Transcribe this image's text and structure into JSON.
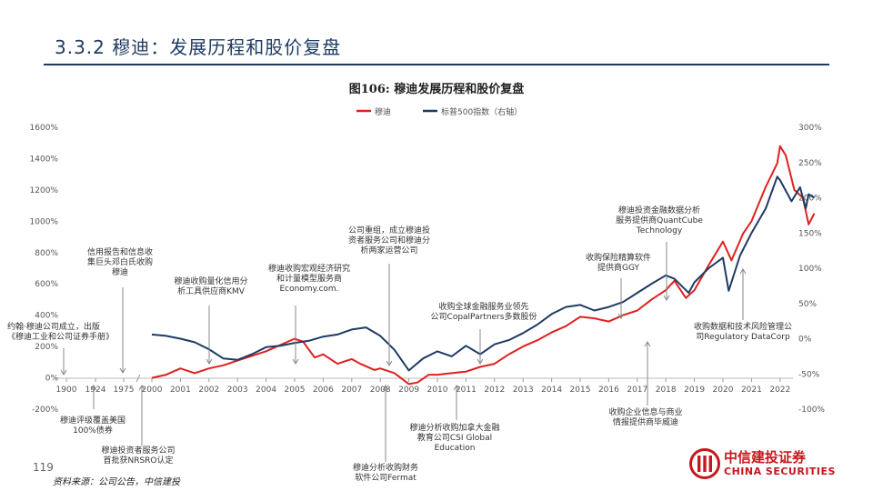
{
  "header": {
    "title": "3.3.2 穆迪：发展历程和股价复盘"
  },
  "figure": {
    "title": "图106: 穆迪发展历程和股价复盘"
  },
  "footer": {
    "page_number": "119",
    "source": "资料来源：公司公告，中信建投"
  },
  "logo": {
    "name_cn": "中信建投证券",
    "name_en": "CHINA SECURITIES"
  },
  "colors": {
    "moodys": "#e02020",
    "sp500": "#1f3b63",
    "brand": "#c8161d",
    "title": "#1f3b63"
  },
  "chart_data": {
    "type": "line",
    "legend_position": "top-center",
    "grid": false,
    "x_ticks": [
      "1900",
      "1924",
      "1975",
      "2000",
      "2001",
      "2002",
      "2003",
      "2004",
      "2005",
      "2006",
      "2007",
      "2008",
      "2009",
      "2010",
      "2011",
      "2012",
      "2013",
      "2014",
      "2015",
      "2016",
      "2017",
      "2018",
      "2019",
      "2020",
      "2021",
      "2022"
    ],
    "y_left": {
      "ticks": [
        "1600%",
        "1400%",
        "1200%",
        "1000%",
        "800%",
        "600%",
        "400%",
        "200%",
        "0%",
        "-200%"
      ],
      "range": [
        -200,
        1600
      ]
    },
    "y_right": {
      "ticks": [
        "300%",
        "250%",
        "200%",
        "150%",
        "100%",
        "50%",
        "0%",
        "-50%",
        "-100%"
      ],
      "range": [
        -100,
        300
      ]
    },
    "series": [
      {
        "name": "穆迪",
        "axis": "left",
        "points": [
          [
            2000.0,
            0
          ],
          [
            2000.5,
            20
          ],
          [
            2001.0,
            60
          ],
          [
            2001.5,
            30
          ],
          [
            2002.0,
            60
          ],
          [
            2002.5,
            80
          ],
          [
            2003.0,
            110
          ],
          [
            2003.5,
            140
          ],
          [
            2004.0,
            170
          ],
          [
            2004.5,
            210
          ],
          [
            2005.0,
            250
          ],
          [
            2005.3,
            230
          ],
          [
            2005.7,
            130
          ],
          [
            2006.0,
            150
          ],
          [
            2006.5,
            90
          ],
          [
            2007.0,
            120
          ],
          [
            2007.3,
            90
          ],
          [
            2007.8,
            50
          ],
          [
            2008.0,
            60
          ],
          [
            2008.5,
            30
          ],
          [
            2009.0,
            -40
          ],
          [
            2009.3,
            -30
          ],
          [
            2009.7,
            20
          ],
          [
            2010.0,
            20
          ],
          [
            2010.5,
            30
          ],
          [
            2011.0,
            40
          ],
          [
            2011.5,
            70
          ],
          [
            2012.0,
            90
          ],
          [
            2012.5,
            150
          ],
          [
            2013.0,
            200
          ],
          [
            2013.5,
            240
          ],
          [
            2014.0,
            290
          ],
          [
            2014.5,
            330
          ],
          [
            2015.0,
            390
          ],
          [
            2015.5,
            380
          ],
          [
            2016.0,
            360
          ],
          [
            2016.5,
            400
          ],
          [
            2017.0,
            430
          ],
          [
            2017.5,
            500
          ],
          [
            2018.0,
            560
          ],
          [
            2018.3,
            620
          ],
          [
            2018.7,
            510
          ],
          [
            2019.0,
            560
          ],
          [
            2019.5,
            720
          ],
          [
            2020.0,
            870
          ],
          [
            2020.3,
            750
          ],
          [
            2020.7,
            920
          ],
          [
            2021.0,
            1000
          ],
          [
            2021.5,
            1220
          ],
          [
            2021.9,
            1370
          ],
          [
            2022.0,
            1480
          ],
          [
            2022.2,
            1420
          ],
          [
            2022.5,
            1200
          ],
          [
            2022.8,
            1150
          ],
          [
            2023.0,
            980
          ],
          [
            2023.2,
            1050
          ]
        ]
      },
      {
        "name": "标普500指数（右轴）",
        "axis": "right",
        "points": [
          [
            2000.0,
            6
          ],
          [
            2000.5,
            4
          ],
          [
            2001.0,
            0
          ],
          [
            2001.5,
            -5
          ],
          [
            2002.0,
            -15
          ],
          [
            2002.5,
            -28
          ],
          [
            2003.0,
            -30
          ],
          [
            2003.5,
            -22
          ],
          [
            2004.0,
            -12
          ],
          [
            2004.5,
            -10
          ],
          [
            2005.0,
            -6
          ],
          [
            2005.5,
            -3
          ],
          [
            2006.0,
            3
          ],
          [
            2006.5,
            6
          ],
          [
            2007.0,
            13
          ],
          [
            2007.5,
            16
          ],
          [
            2008.0,
            4
          ],
          [
            2008.5,
            -16
          ],
          [
            2009.0,
            -45
          ],
          [
            2009.5,
            -28
          ],
          [
            2010.0,
            -18
          ],
          [
            2010.5,
            -25
          ],
          [
            2011.0,
            -10
          ],
          [
            2011.5,
            -22
          ],
          [
            2012.0,
            -8
          ],
          [
            2012.5,
            -2
          ],
          [
            2013.0,
            8
          ],
          [
            2013.5,
            20
          ],
          [
            2014.0,
            35
          ],
          [
            2014.5,
            45
          ],
          [
            2015.0,
            48
          ],
          [
            2015.5,
            40
          ],
          [
            2016.0,
            45
          ],
          [
            2016.5,
            52
          ],
          [
            2017.0,
            65
          ],
          [
            2017.5,
            78
          ],
          [
            2018.0,
            90
          ],
          [
            2018.3,
            85
          ],
          [
            2018.8,
            65
          ],
          [
            2019.0,
            80
          ],
          [
            2019.5,
            100
          ],
          [
            2020.0,
            115
          ],
          [
            2020.2,
            68
          ],
          [
            2020.6,
            118
          ],
          [
            2021.0,
            150
          ],
          [
            2021.5,
            185
          ],
          [
            2021.9,
            230
          ],
          [
            2022.0,
            225
          ],
          [
            2022.4,
            195
          ],
          [
            2022.7,
            215
          ],
          [
            2022.9,
            185
          ],
          [
            2023.0,
            205
          ],
          [
            2023.2,
            200
          ]
        ]
      }
    ],
    "annotations": [
      {
        "id": "ann-1900",
        "lines": [
          "约翰·穆迪公司成立，出版",
          "《穆迪工业和公司证券手册》"
        ]
      },
      {
        "id": "ann-1924",
        "lines": [
          "信用报告和信息收",
          "集巨头邓白氏收购",
          "穆迪"
        ]
      },
      {
        "id": "ann-1909",
        "lines": [
          "穆迪评级覆盖美国",
          "100%债券"
        ]
      },
      {
        "id": "ann-1975",
        "lines": [
          "穆迪投资者服务公司",
          "首批获NRSRO认定"
        ]
      },
      {
        "id": "ann-2002",
        "lines": [
          "穆迪收购量化信用分",
          "析工具供应商KMV"
        ]
      },
      {
        "id": "ann-2005",
        "lines": [
          "穆迪收购宏观经济研究",
          "和计量模型服务商",
          "Economy.com."
        ]
      },
      {
        "id": "ann-2008a",
        "lines": [
          "公司重组，成立穆迪投",
          "资者服务公司和穆迪分",
          "析两家运营公司"
        ]
      },
      {
        "id": "ann-2008b",
        "lines": [
          "穆迪分析收购财务",
          "软件公司Fermat"
        ]
      },
      {
        "id": "ann-2011a",
        "lines": [
          "穆迪分析收购加拿大金融",
          "教育公司CSI Global",
          "Education"
        ]
      },
      {
        "id": "ann-2011b",
        "lines": [
          "收购全球金融服务业领先",
          "公司CopalPartners多数股份"
        ]
      },
      {
        "id": "ann-2016",
        "lines": [
          "收购保险精算软件",
          "提供商GGY"
        ]
      },
      {
        "id": "ann-2017",
        "lines": [
          "收购企业信息与商业",
          "情报提供商毕威迪"
        ]
      },
      {
        "id": "ann-2018",
        "lines": [
          "穆迪投资金融数据分析",
          "服务提供商QuantCube",
          "Technology"
        ]
      },
      {
        "id": "ann-2020",
        "lines": [
          "收购数据和技术风险管理公",
          "司Regulatory DataCorp"
        ]
      }
    ]
  }
}
